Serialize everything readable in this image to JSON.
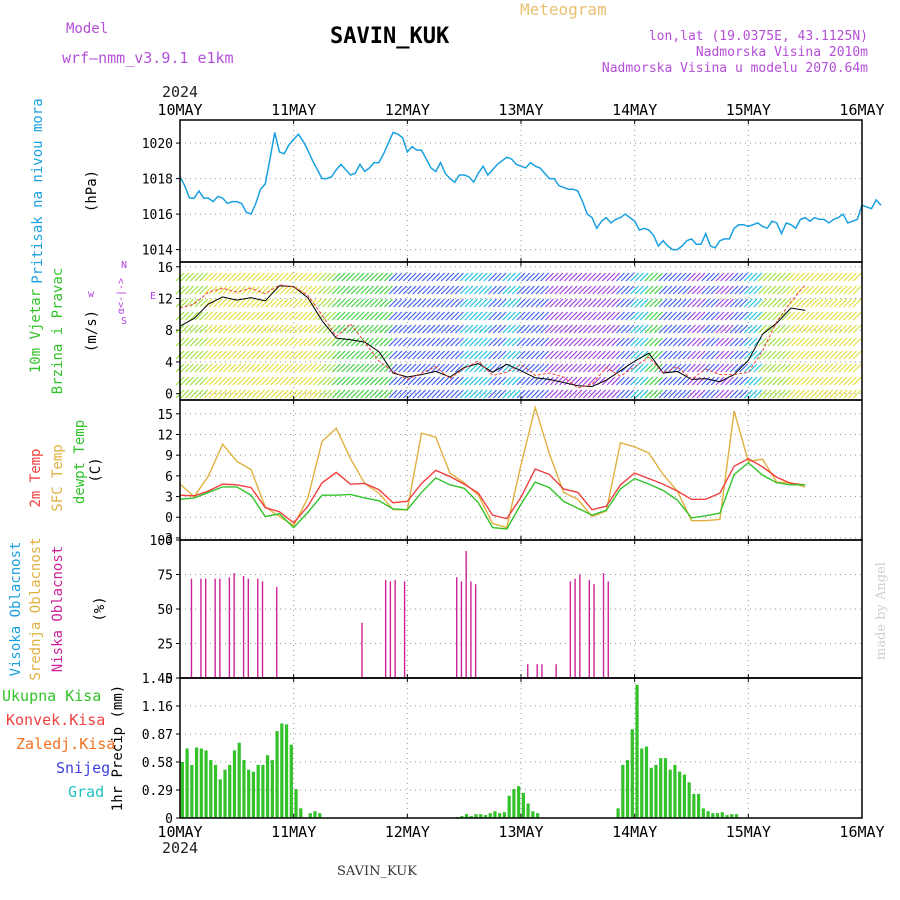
{
  "header": {
    "model_label": "Model",
    "model_name": "wrf—nmm_v3.9.1  e1km",
    "app_title": "Meteogram",
    "station": "SAVIN_KUK",
    "coords": "lon,lat (19.0375E, 43.1125N)",
    "elevation": "Nadmorska Visina 2010m",
    "model_elevation": "Nadmorska Visina u modelu 2070.64m",
    "footer_station": "SAVIN_KUK",
    "credit": "made by Angel"
  },
  "colors": {
    "pressure": "#1aa0e0",
    "temp2m": "#f04040",
    "sfc": "#e0b040",
    "dew": "#33c22a",
    "high_cloud": "#1aa0e0",
    "mid_cloud": "#e0b040",
    "low_cloud": "#cc2299",
    "total_precip": "#33c22a",
    "conv_precip": "#f04040",
    "frozen": "#f07020",
    "snow": "#4040e0",
    "graupel": "#20c0c0",
    "wind_dir": "#b040e0"
  },
  "chart_data": [
    {
      "type": "line",
      "id": "pressure",
      "ylabel": [
        "Pritisak na nivou mora",
        "(hPa)"
      ],
      "ylim": [
        1013.3,
        1021.3
      ],
      "yticks": [
        1014,
        1016,
        1018,
        1020
      ],
      "x_start": "10MAY 2024",
      "x_step_hours": 1,
      "series": [
        {
          "values": [
            1018.1,
            1017.6,
            1016.9,
            1016.9,
            1017.3,
            1016.9,
            1016.9,
            1016.7,
            1017,
            1016.9,
            1016.6,
            1016.7,
            1016.7,
            1016.6,
            1016.1,
            1016,
            1016.6,
            1017.4,
            1017.7,
            1019.1,
            1020.6,
            1019.5,
            1019.4,
            1019.9,
            1020.2,
            1020.5,
            1020.1,
            1019.6,
            1019,
            1018.5,
            1018,
            1018,
            1018.1,
            1018.5,
            1018.8,
            1018.5,
            1018.2,
            1018.3,
            1018.8,
            1018.4,
            1018.6,
            1018.9,
            1018.9,
            1019.4,
            1020,
            1020.6,
            1020.5,
            1020.3,
            1019.5,
            1019.8,
            1019.6,
            1019.6,
            1019.1,
            1018.6,
            1018.4,
            1018.9,
            1018.3,
            1018,
            1017.8,
            1018.2,
            1018.2,
            1018.1,
            1017.8,
            1018.3,
            1018.7,
            1018.2,
            1018.5,
            1018.8,
            1019,
            1019.2,
            1019.1,
            1018.8,
            1018.7,
            1018.6,
            1018.9,
            1018.7,
            1018.6,
            1018.3,
            1018,
            1018,
            1017.6,
            1017.5,
            1017.4,
            1017.4,
            1017.3,
            1016.7,
            1016,
            1015.8,
            1015.2,
            1015.6,
            1015.8,
            1015.5,
            1015.7,
            1015.8,
            1016,
            1015.8,
            1015.6,
            1015.1,
            1015.2,
            1015.1,
            1014.8,
            1014.2,
            1014.5,
            1014.2,
            1014,
            1014,
            1014.2,
            1014.5,
            1014.6,
            1014.3,
            1014.3,
            1014.9,
            1014.2,
            1014.1,
            1014.5,
            1014.6,
            1014.6,
            1015.2,
            1015.4,
            1015.4,
            1015.3,
            1015.4,
            1015.5,
            1015.3,
            1015.2,
            1015.6,
            1015.5,
            1014.9,
            1015.5,
            1015.4,
            1015.2,
            1015.7,
            1015.8,
            1015.6,
            1015.8,
            1015.7,
            1015.7,
            1015.5,
            1015.7,
            1015.8,
            1016,
            1015.5,
            1015.6,
            1015.7,
            1016.5,
            1016.4,
            1016.3,
            1016.8,
            1016.5
          ]
        }
      ],
      "xticks": [
        "10MAY",
        "11MAY",
        "12MAY",
        "13MAY",
        "14MAY",
        "15MAY",
        "16MAY"
      ]
    },
    {
      "type": "scatter",
      "id": "wind",
      "ylabel": [
        "10m Vjetar",
        "Brzina i Pravac",
        "(m/s)"
      ],
      "ylim": [
        -0.8,
        16.6
      ],
      "yticks": [
        0,
        4,
        8,
        12,
        16
      ],
      "x_start": "10MAY 2024",
      "x_step_hours": 3,
      "compass_labels": [
        "w",
        "α<-|->",
        "E",
        "N",
        "S"
      ],
      "series": [
        {
          "name": "speed",
          "values": [
            8.5,
            9.5,
            11.3,
            12.2,
            11.8,
            12.1,
            11.7,
            13.6,
            13.5,
            12.1,
            9.2,
            7,
            6.8,
            6.5,
            5.3,
            2.6,
            2.1,
            2.4,
            2.8,
            2.1,
            3.3,
            3.8,
            2.7,
            3.7,
            2.9,
            2,
            1.8,
            1.4,
            1,
            0.9,
            1.7,
            2.9,
            4.1,
            5.1,
            2.6,
            2.8,
            1.8,
            1.9,
            1.5,
            2.4,
            4.2,
            7.5,
            8.9,
            10.8,
            10.5
          ]
        },
        {
          "name": "direction",
          "values": [
            10.8,
            11.3,
            12.8,
            13.3,
            12.8,
            13.3,
            12.6,
            13.7,
            13.5,
            12.4,
            9.9,
            7.2,
            8.8,
            6.5,
            4.1,
            2.8,
            1.8,
            2.6,
            3.4,
            1.9,
            3.2,
            4.1,
            2.3,
            2.7,
            3.7,
            2.3,
            2.6,
            2.1,
            0.7,
            1.2,
            3.3,
            2.2,
            3.4,
            4.6,
            2.6,
            3.4,
            1.8,
            3.1,
            2.4,
            2.4,
            2.7,
            5.4,
            9.1,
            11.6,
            13.7
          ]
        }
      ]
    },
    {
      "type": "line",
      "id": "temperature",
      "ylabel": [
        "2m Temp",
        "SFC Temp",
        "dewpt Temp",
        "(C)"
      ],
      "ylim": [
        -3.3,
        17
      ],
      "yticks": [
        -3,
        0,
        3,
        6,
        9,
        12,
        15
      ],
      "x_start": "10MAY 2024",
      "x_step_hours": 3,
      "series": [
        {
          "name": "2m Temp",
          "values": [
            3.2,
            3.1,
            3.8,
            4.8,
            4.7,
            4.3,
            1.4,
            0.8,
            -0.8,
            1.6,
            5,
            6.5,
            4.8,
            4.9,
            4,
            2.1,
            2.3,
            4.9,
            6.8,
            5.9,
            4.8,
            3.5,
            0.3,
            -0.2,
            2.9,
            7,
            6.2,
            4.1,
            3.6,
            1.1,
            1.6,
            4.7,
            6.4,
            5.6,
            4.8,
            3.8,
            2.6,
            2.6,
            3.5,
            7.4,
            8.5,
            7.3,
            5.8,
            4.9,
            4.7
          ]
        },
        {
          "name": "SFC Temp",
          "values": [
            4.8,
            3,
            6,
            10.6,
            8.1,
            6.9,
            1.5,
            0.1,
            -1.2,
            2.8,
            11,
            12.9,
            8.5,
            4.9,
            3.5,
            1.1,
            1.1,
            12.2,
            11.6,
            6.4,
            5,
            3.2,
            -0.9,
            -1.5,
            7.6,
            15.9,
            9.2,
            3.6,
            2.6,
            0.1,
            0.9,
            10.8,
            10.2,
            9.3,
            6.2,
            3.8,
            -0.5,
            -0.5,
            -0.3,
            15.4,
            8.1,
            8.4,
            5.1,
            5,
            4.4
          ]
        },
        {
          "name": "dewpt Temp",
          "values": [
            2.6,
            2.8,
            3.6,
            4.4,
            4.4,
            3.2,
            0.1,
            0.5,
            -1.5,
            0.7,
            3.2,
            3.2,
            3.3,
            2.8,
            2.4,
            1.2,
            1.1,
            3.6,
            5.7,
            4.7,
            4.2,
            2.1,
            -1.5,
            -1.7,
            1.9,
            5.1,
            4.3,
            2.3,
            1.3,
            0.3,
            1,
            4.1,
            5.6,
            4.8,
            3.9,
            2.5,
            -0.1,
            0.2,
            0.6,
            6.2,
            7.9,
            6.1,
            5,
            4.7,
            4.7
          ]
        }
      ]
    },
    {
      "type": "bar",
      "id": "clouds",
      "ylabel": [
        "Visoka Oblacnost",
        "Srednja Oblacnost",
        "Niska Oblacnost",
        "(%)"
      ],
      "ylim": [
        0,
        100
      ],
      "yticks": [
        0,
        25,
        50,
        75,
        100
      ],
      "x_start": "10MAY 2024",
      "x_step_hours": 1,
      "series": [
        {
          "name": "Visoka Oblacnost",
          "values": [
            0,
            0,
            0,
            0,
            0,
            0,
            0,
            0,
            0,
            0,
            0,
            0,
            0,
            0,
            0,
            0,
            0,
            0,
            0,
            0,
            0,
            0,
            0,
            0,
            0,
            0,
            0,
            0,
            0,
            0,
            0,
            0,
            0,
            0,
            0,
            0,
            0,
            0,
            0,
            0,
            0,
            0,
            0,
            0,
            0,
            0,
            0,
            0,
            0,
            0,
            0,
            0,
            0,
            0,
            0,
            0,
            0,
            0,
            0,
            0,
            0,
            0,
            0,
            0,
            0,
            0,
            0,
            0,
            0,
            0,
            0,
            0,
            0,
            0,
            0,
            0,
            0,
            0,
            0,
            0,
            0,
            0,
            0,
            0,
            0,
            0,
            0,
            0,
            0,
            0,
            0,
            0,
            0,
            0,
            0,
            0,
            0,
            0,
            0,
            0,
            0,
            0,
            0,
            0,
            0,
            0,
            0,
            0,
            0,
            0,
            0,
            0,
            0,
            0,
            0,
            0,
            0,
            0,
            0,
            0,
            0,
            0,
            0,
            0,
            0,
            0,
            0,
            0,
            0,
            0,
            0,
            0,
            0,
            0,
            0,
            0,
            0,
            0,
            0,
            0,
            0,
            0,
            0,
            0,
            0
          ]
        },
        {
          "name": "Srednja Oblacnost",
          "values": [
            0,
            0,
            0,
            0,
            0,
            0,
            0,
            0,
            0,
            0,
            0,
            0,
            0,
            0,
            0,
            0,
            0,
            0,
            0,
            0,
            0,
            0,
            0,
            0,
            0,
            0,
            0,
            0,
            0,
            0,
            0,
            0,
            0,
            0,
            0,
            0,
            0,
            0,
            0,
            0,
            0,
            0,
            0,
            0,
            0,
            0,
            0,
            0,
            0,
            0,
            0,
            0,
            0,
            0,
            0,
            0,
            0,
            0,
            0,
            0,
            0,
            0,
            0,
            0,
            0,
            0,
            0,
            0,
            0,
            0,
            0,
            0,
            0,
            0,
            0,
            0,
            0,
            0,
            0,
            0,
            0,
            0,
            0,
            0,
            0,
            0,
            0,
            0,
            0,
            0,
            0,
            0,
            0,
            0,
            0,
            0,
            0,
            0,
            0,
            0,
            0,
            0,
            0,
            0,
            0,
            0,
            0,
            0,
            0,
            0,
            0,
            0,
            0,
            0,
            0,
            0,
            0,
            0,
            0,
            0,
            0,
            0,
            0,
            0,
            0,
            0,
            0,
            0,
            0,
            0,
            0,
            0,
            0,
            0,
            0,
            0,
            0,
            0,
            0,
            0,
            0,
            0,
            0,
            0,
            0
          ]
        },
        {
          "name": "Niska Oblacnost",
          "values": [
            0,
            0,
            72,
            0,
            72,
            72,
            0,
            72,
            72,
            0,
            73,
            76,
            0,
            74,
            72,
            0,
            72,
            70,
            0,
            0,
            66,
            0,
            0,
            0,
            0,
            0,
            0,
            0,
            0,
            0,
            0,
            0,
            0,
            0,
            0,
            0,
            0,
            0,
            40,
            0,
            0,
            0,
            0,
            71,
            70,
            71,
            0,
            70,
            0,
            0,
            0,
            0,
            0,
            0,
            0,
            0,
            0,
            0,
            73,
            70,
            92,
            70,
            68,
            0,
            0,
            0,
            0,
            0,
            0,
            0,
            0,
            0,
            0,
            10,
            0,
            10,
            10,
            0,
            0,
            10,
            0,
            0,
            70,
            72,
            75,
            0,
            71,
            68,
            0,
            76,
            70,
            0,
            0,
            0,
            0,
            0,
            0,
            0,
            0,
            0,
            0,
            0,
            0,
            0,
            0,
            0,
            0,
            0,
            0,
            0,
            0,
            0,
            0,
            0,
            0,
            0,
            0,
            0,
            0,
            0,
            0,
            0,
            0,
            0,
            0,
            0,
            0,
            0,
            0,
            0,
            0,
            0,
            0,
            0,
            0,
            0,
            0,
            0,
            0,
            0,
            0
          ]
        }
      ]
    },
    {
      "type": "bar",
      "id": "precip",
      "ylabel": [
        "1hr Precip (mm)"
      ],
      "legend": [
        "Ukupna Kisa",
        "Konvek.Kisa",
        "Zaledj.Kisa",
        "Snijeg",
        "Grad"
      ],
      "ylim": [
        0,
        1.45
      ],
      "yticks": [
        0,
        0.29,
        0.58,
        0.87,
        1.16,
        1.45
      ],
      "x_start": "10MAY 2024",
      "x_step_hours": 1,
      "series": [
        {
          "name": "Ukupna Kisa",
          "values": [
            0.58,
            0.72,
            0.55,
            0.73,
            0.72,
            0.7,
            0.6,
            0.55,
            0.4,
            0.5,
            0.55,
            0.7,
            0.78,
            0.6,
            0.5,
            0.48,
            0.55,
            0.55,
            0.65,
            0.6,
            0.9,
            0.98,
            0.97,
            0.76,
            0.3,
            0.1,
            0,
            0.05,
            0.07,
            0.05,
            0,
            0,
            0,
            0,
            0,
            0,
            0,
            0,
            0,
            0,
            0,
            0,
            0,
            0,
            0,
            0,
            0,
            0,
            0,
            0,
            0,
            0,
            0,
            0,
            0,
            0,
            0,
            0,
            0.01,
            0.02,
            0.04,
            0.02,
            0.04,
            0.04,
            0.03,
            0.05,
            0.07,
            0.05,
            0.06,
            0.23,
            0.3,
            0.33,
            0.26,
            0.15,
            0.07,
            0.05,
            0,
            0,
            0,
            0,
            0,
            0,
            0,
            0,
            0,
            0,
            0,
            0,
            0,
            0,
            0,
            0,
            0.1,
            0.55,
            0.6,
            0.92,
            1.38,
            0.72,
            0.74,
            0.52,
            0.55,
            0.62,
            0.62,
            0.5,
            0.55,
            0.48,
            0.45,
            0.37,
            0.25,
            0.25,
            0.1,
            0.07,
            0.05,
            0.05,
            0.06,
            0.03,
            0.04,
            0.04,
            0,
            0,
            0,
            0,
            0,
            0,
            0,
            0,
            0,
            0,
            0,
            0,
            0,
            0,
            0,
            0,
            0,
            0,
            0,
            0,
            0,
            0,
            0,
            0,
            0,
            0,
            0,
            0,
            0,
            0
          ]
        }
      ]
    }
  ]
}
